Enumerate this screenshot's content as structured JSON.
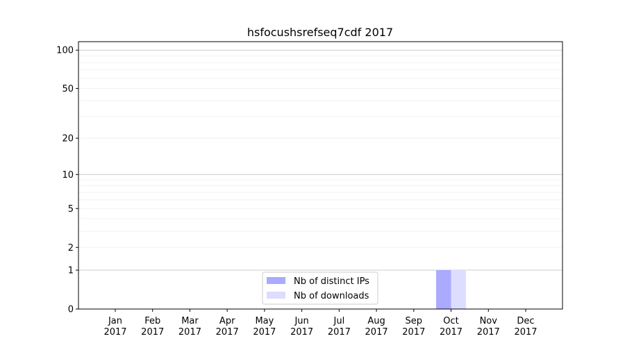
{
  "chart_data": {
    "type": "bar",
    "title": "hsfocushsrefseq7cdf 2017",
    "xlabel": "",
    "ylabel": "",
    "yscale": "log(1+y)",
    "ylim": [
      0,
      116
    ],
    "yticks": [
      0,
      1,
      2,
      5,
      10,
      20,
      50,
      100
    ],
    "grid": true,
    "legend_placement": "lower-center",
    "categories": [
      "Jan\n2017",
      "Feb\n2017",
      "Mar\n2017",
      "Apr\n2017",
      "May\n2017",
      "Jun\n2017",
      "Jul\n2017",
      "Aug\n2017",
      "Sep\n2017",
      "Oct\n2017",
      "Nov\n2017",
      "Dec\n2017"
    ],
    "series": [
      {
        "name": "Nb of distinct IPs",
        "color": "#aaaaff",
        "values": [
          0,
          0,
          0,
          0,
          0,
          0,
          0,
          0,
          0,
          1,
          0,
          0
        ]
      },
      {
        "name": "Nb of downloads",
        "color": "#ddddff",
        "values": [
          0,
          0,
          0,
          0,
          0,
          0,
          0,
          0,
          0,
          1,
          0,
          0
        ]
      }
    ]
  }
}
